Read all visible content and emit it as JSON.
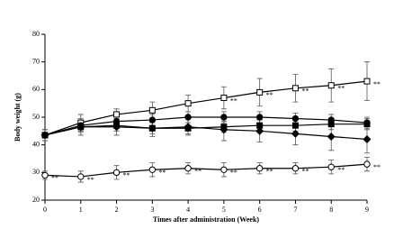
{
  "chart_data": {
    "type": "line",
    "xlabel": "Times after administration (Week)",
    "ylabel": "Body weight (g)",
    "x": [
      0,
      1,
      2,
      3,
      4,
      5,
      6,
      7,
      8,
      9
    ],
    "xlim": [
      0,
      9
    ],
    "xticks": [
      0,
      1,
      2,
      3,
      4,
      5,
      6,
      7,
      8,
      9
    ],
    "ylim": [
      20,
      80
    ],
    "yticks": [
      20,
      30,
      40,
      50,
      60,
      70,
      80
    ],
    "series": [
      {
        "color": "#000000",
        "marker": "square-open",
        "values": [
          43.5,
          48,
          51,
          52.5,
          55,
          57,
          59,
          60.5,
          61.5,
          63
        ],
        "errors": [
          2,
          3,
          2,
          3,
          3,
          4,
          5,
          5,
          6,
          7
        ],
        "annotations": [
          null,
          null,
          null,
          null,
          null,
          "**",
          "**",
          "**",
          "**",
          "**"
        ]
      },
      {
        "color": "#000000",
        "marker": "circle-filled",
        "values": [
          43.5,
          47,
          48.5,
          49,
          50,
          50,
          50,
          49.5,
          49,
          48
        ],
        "errors": [
          2,
          2,
          2,
          2,
          2,
          2,
          2,
          2,
          2,
          2
        ]
      },
      {
        "color": "#000000",
        "marker": "square-filled",
        "values": [
          43.5,
          46.5,
          47,
          46,
          46,
          46.5,
          47,
          47,
          47.5,
          47.5
        ],
        "errors": [
          1,
          2,
          2,
          2,
          2,
          2,
          2,
          2,
          2,
          2
        ]
      },
      {
        "color": "#000000",
        "marker": "diamond-filled",
        "values": [
          43.5,
          46.5,
          46.5,
          46,
          46.5,
          45.5,
          45,
          44,
          43,
          42
        ],
        "errors": [
          2,
          3,
          3,
          3,
          3,
          4,
          4,
          4,
          5,
          5
        ]
      },
      {
        "color": "#000000",
        "marker": "circle-open",
        "values": [
          29,
          28.5,
          30,
          31,
          31.5,
          31,
          31.5,
          31.5,
          32,
          33
        ],
        "errors": [
          1.5,
          2,
          2.5,
          2.5,
          2,
          2.5,
          2,
          2,
          2.5,
          2.5
        ],
        "annotations": [
          "**",
          "**",
          "**",
          "**",
          "**",
          "**",
          "**",
          "**",
          "**",
          "**"
        ]
      }
    ]
  }
}
